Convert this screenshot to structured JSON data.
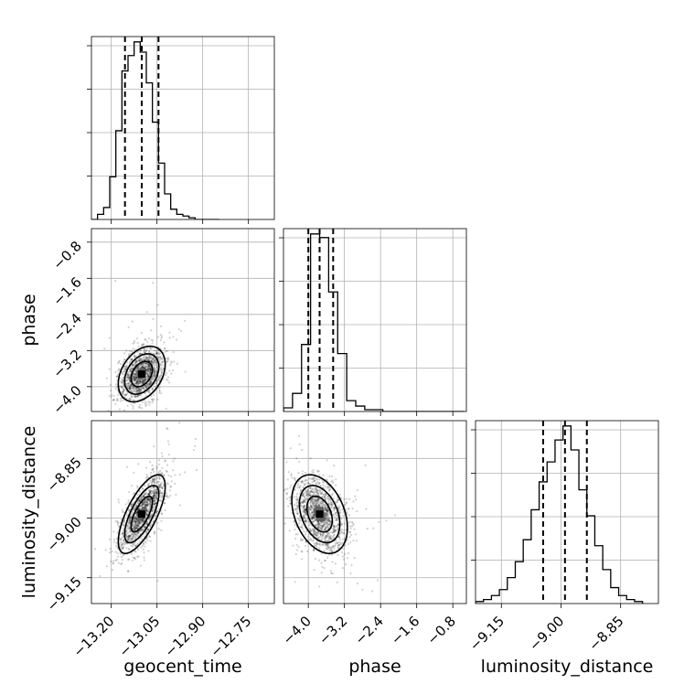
{
  "chart_data": {
    "type": "corner",
    "parameters": [
      "geocent_time",
      "phase",
      "luminosity_distance"
    ],
    "axes": {
      "geocent_time": {
        "label": "geocent_time",
        "range": [
          -13.265,
          -12.665
        ],
        "ticks": [
          -13.2,
          -13.05,
          -12.9,
          -12.75
        ],
        "tick_labels": [
          "−13.20",
          "−13.05",
          "−12.90",
          "−12.75"
        ],
        "quantiles": [
          -13.155,
          -13.1,
          -13.045
        ]
      },
      "phase": {
        "label": "phase",
        "range": [
          -4.55,
          -0.5
        ],
        "ticks": [
          -4.0,
          -3.2,
          -2.4,
          -1.6,
          -0.8
        ],
        "tick_labels": [
          "−4.0",
          "−3.2",
          "−2.4",
          "−1.6",
          "−0.8"
        ],
        "quantiles": [
          -4.0,
          -3.75,
          -3.45
        ]
      },
      "luminosity_distance": {
        "label": "luminosity_distance",
        "range": [
          -9.215,
          -8.755
        ],
        "ticks": [
          -9.15,
          -9.0,
          -8.85
        ],
        "tick_labels": [
          "−9.15",
          "−9.00",
          "−8.85"
        ],
        "quantiles": [
          -9.045,
          -8.99,
          -8.935
        ]
      }
    },
    "histograms": {
      "geocent_time": {
        "bin_edges": [
          -13.265,
          -13.245,
          -13.225,
          -13.205,
          -13.185,
          -13.165,
          -13.145,
          -13.125,
          -13.105,
          -13.085,
          -13.065,
          -13.045,
          -13.025,
          -13.005,
          -12.985,
          -12.965,
          -12.945,
          -12.925,
          -12.905,
          -12.885,
          -12.865,
          -12.845
        ],
        "counts": [
          0,
          3,
          7,
          25,
          52,
          87,
          96,
          104,
          98,
          80,
          57,
          33,
          15,
          6,
          3,
          2,
          1,
          0,
          0,
          0,
          0
        ]
      },
      "phase": {
        "bin_edges": [
          -4.55,
          -4.35,
          -4.15,
          -3.95,
          -3.75,
          -3.55,
          -3.35,
          -3.15,
          -2.95,
          -2.75,
          -2.55,
          -2.35,
          -2.15,
          -1.95,
          -1.75,
          -1.55,
          -1.35,
          -1.15,
          -0.95,
          -0.75,
          -0.55
        ],
        "counts": [
          2,
          10,
          37,
          98,
          96,
          66,
          32,
          6,
          3,
          1,
          1,
          0,
          0,
          0,
          0,
          0,
          0,
          0,
          0,
          0
        ]
      },
      "luminosity_distance": {
        "bin_edges": [
          -9.215,
          -9.195,
          -9.175,
          -9.155,
          -9.135,
          -9.115,
          -9.095,
          -9.075,
          -9.055,
          -9.035,
          -9.015,
          -8.995,
          -8.975,
          -8.955,
          -8.935,
          -8.915,
          -8.895,
          -8.875,
          -8.855,
          -8.835,
          -8.815,
          -8.795
        ],
        "counts": [
          1,
          2,
          4,
          7,
          13,
          21,
          32,
          47,
          61,
          71,
          82,
          89,
          77,
          57,
          44,
          29,
          17,
          8,
          4,
          2,
          1
        ]
      }
    },
    "joint": [
      {
        "x": "geocent_time",
        "y": "phase",
        "center": [
          -13.1,
          -3.72
        ],
        "spread": [
          0.035,
          0.28
        ],
        "correlation": 0.35
      },
      {
        "x": "geocent_time",
        "y": "luminosity_distance",
        "center": [
          -13.1,
          -8.99
        ],
        "spread": [
          0.035,
          0.045
        ],
        "correlation": 0.7
      },
      {
        "x": "phase",
        "y": "luminosity_distance",
        "center": [
          -3.75,
          -8.99
        ],
        "spread": [
          0.28,
          0.045
        ],
        "correlation": -0.35
      }
    ],
    "grid": true
  }
}
